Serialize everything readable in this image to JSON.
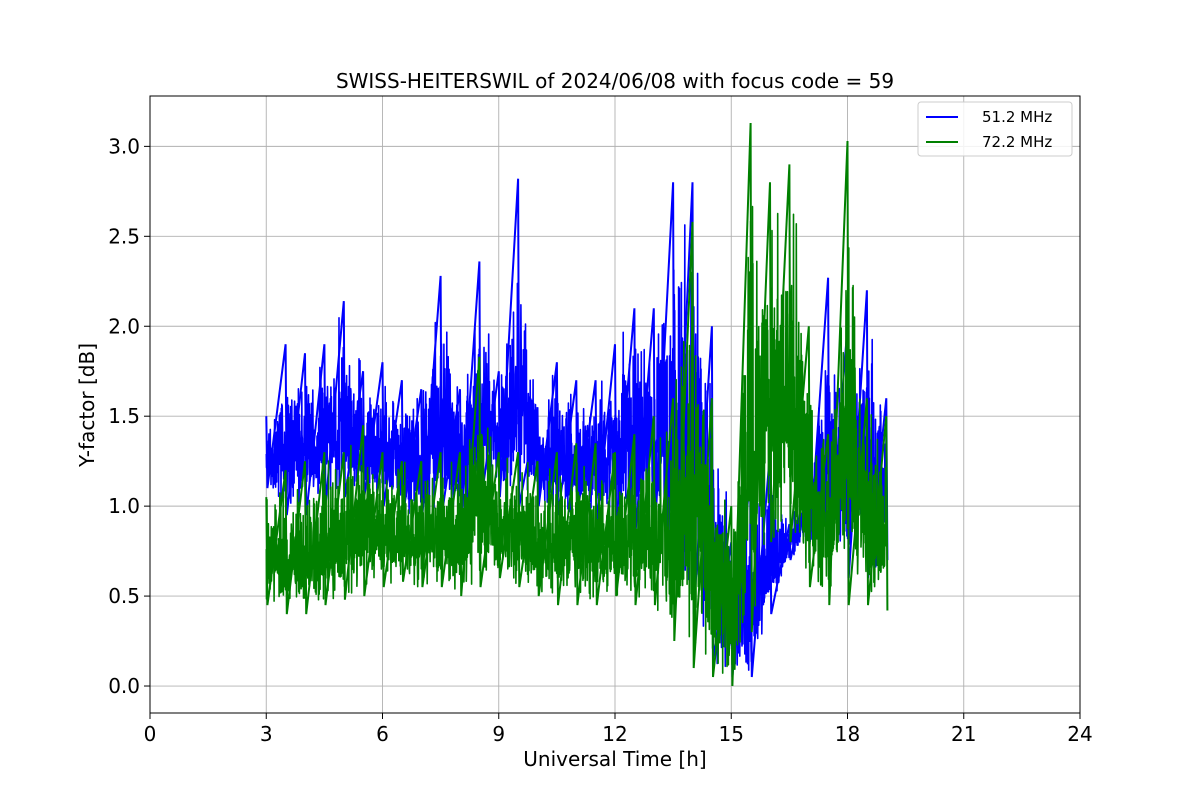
{
  "chart_data": {
    "type": "line",
    "title": "SWISS-HEITERSWIL of 2024/06/08 with focus code = 59",
    "xlabel": "Universal Time [h]",
    "ylabel": "Y-factor [dB]",
    "xlim": [
      0,
      24
    ],
    "ylim": [
      -0.15,
      3.28
    ],
    "xticks": [
      "0",
      "3",
      "6",
      "9",
      "12",
      "15",
      "18",
      "21",
      "24"
    ],
    "yticks": [
      "0.0",
      "0.5",
      "1.0",
      "1.5",
      "2.0",
      "2.5",
      "3.0"
    ],
    "grid": true,
    "legend_position": "top-right",
    "x": [
      3.0,
      3.5,
      4.0,
      4.5,
      5.0,
      5.5,
      6.0,
      6.5,
      7.0,
      7.5,
      8.0,
      8.5,
      9.0,
      9.5,
      10.0,
      10.5,
      11.0,
      11.5,
      12.0,
      12.5,
      13.0,
      13.5,
      14.0,
      14.5,
      15.0,
      15.5,
      16.0,
      16.5,
      17.0,
      17.5,
      18.0,
      18.5,
      19.0
    ],
    "series": [
      {
        "name": "51.2 MHz",
        "color": "#0000ff",
        "min": [
          1.1,
          0.95,
          0.95,
          1.0,
          1.05,
          1.05,
          1.0,
          0.95,
          0.95,
          0.95,
          0.9,
          1.0,
          1.05,
          1.0,
          1.0,
          0.95,
          0.95,
          0.9,
          0.9,
          0.85,
          0.85,
          0.6,
          0.4,
          0.15,
          0.05,
          0.05,
          0.4,
          0.7,
          0.8,
          0.7,
          0.6,
          0.6,
          0.7
        ],
        "max": [
          1.5,
          1.9,
          1.85,
          1.9,
          2.14,
          1.75,
          1.8,
          1.7,
          1.65,
          2.28,
          1.65,
          2.36,
          1.75,
          2.82,
          1.55,
          1.8,
          1.7,
          1.7,
          1.9,
          2.1,
          2.1,
          2.8,
          2.8,
          2.0,
          0.8,
          1.2,
          1.3,
          0.9,
          1.2,
          2.27,
          2.0,
          2.2,
          1.6
        ]
      },
      {
        "name": "72.2 MHz",
        "color": "#008000",
        "min": [
          0.45,
          0.4,
          0.4,
          0.45,
          0.48,
          0.5,
          0.55,
          0.58,
          0.55,
          0.55,
          0.5,
          0.55,
          0.6,
          0.55,
          0.5,
          0.45,
          0.45,
          0.45,
          0.5,
          0.45,
          0.45,
          0.25,
          0.1,
          0.05,
          0.0,
          0.3,
          0.8,
          0.8,
          0.55,
          0.45,
          0.45,
          0.45,
          0.42
        ],
        "max": [
          1.05,
          1.2,
          1.25,
          1.3,
          1.3,
          1.45,
          1.3,
          1.25,
          1.25,
          1.3,
          1.3,
          1.83,
          1.3,
          1.3,
          1.25,
          1.3,
          1.35,
          1.35,
          1.3,
          1.4,
          1.5,
          1.6,
          2.58,
          1.6,
          1.0,
          3.13,
          2.8,
          2.9,
          2.0,
          1.4,
          3.03,
          1.6,
          1.5
        ]
      }
    ]
  }
}
